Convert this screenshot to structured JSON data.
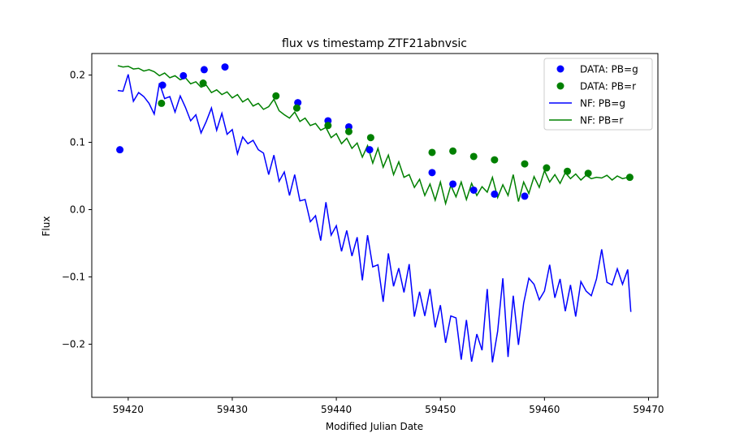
{
  "chart_data": {
    "type": "line",
    "title": "flux vs timestamp ZTF21abnvsic",
    "xlabel": "Modified Julian Date",
    "ylabel": "Flux",
    "xlim": [
      59416.5,
      59470.9
    ],
    "ylim": [
      -0.279,
      0.232
    ],
    "xticks": [
      59420,
      59430,
      59440,
      59450,
      59460,
      59470
    ],
    "yticks": [
      -0.2,
      -0.1,
      0.0,
      0.1,
      0.2
    ],
    "xtick_labels": [
      "59420",
      "59430",
      "59440",
      "59450",
      "59460",
      "59470"
    ],
    "ytick_labels": [
      "−0.2",
      "−0.1",
      "0.0",
      "0.1",
      "0.2"
    ],
    "grid": false,
    "legend_position": "top-right",
    "series": [
      {
        "name": "DATA: PB=g",
        "kind": "scatter",
        "color": "#0000ff",
        "x": [
          59419.2,
          59423.3,
          59425.3,
          59427.3,
          59429.3,
          59436.3,
          59439.2,
          59441.2,
          59443.2,
          59449.2,
          59451.2,
          59453.2,
          59455.2,
          59458.1
        ],
        "y": [
          0.089,
          0.185,
          0.199,
          0.208,
          0.212,
          0.159,
          0.132,
          0.123,
          0.089,
          0.055,
          0.038,
          0.029,
          0.023,
          0.02
        ]
      },
      {
        "name": "DATA: PB=r",
        "kind": "scatter",
        "color": "#008000",
        "x": [
          59423.2,
          59427.2,
          59434.2,
          59436.2,
          59439.2,
          59441.2,
          59443.3,
          59449.2,
          59451.2,
          59453.2,
          59455.2,
          59458.1,
          59460.2,
          59462.2,
          59464.2,
          59468.2
        ],
        "y": [
          0.158,
          0.188,
          0.169,
          0.151,
          0.125,
          0.116,
          0.107,
          0.085,
          0.087,
          0.079,
          0.074,
          0.068,
          0.062,
          0.057,
          0.054,
          0.048
        ]
      },
      {
        "name": "NF: PB=g",
        "kind": "line",
        "color": "#0000ff",
        "x": [
          59419.0,
          59419.5,
          59420.0,
          59420.5,
          59421.0,
          59421.5,
          59422.0,
          59422.5,
          59423.0,
          59423.5,
          59424.0,
          59424.5,
          59425.0,
          59425.5,
          59426.0,
          59426.5,
          59427.0,
          59427.5,
          59428.0,
          59428.5,
          59429.0,
          59429.5,
          59430.0,
          59430.5,
          59431.0,
          59431.5,
          59432.0,
          59432.5,
          59433.0,
          59433.5,
          59434.0,
          59434.5,
          59435.0,
          59435.5,
          59436.0,
          59436.5,
          59437.0,
          59437.5,
          59438.0,
          59438.5,
          59439.0,
          59439.5,
          59440.0,
          59440.5,
          59441.0,
          59441.5,
          59442.0,
          59442.5,
          59443.0,
          59443.5,
          59444.0,
          59444.5,
          59445.0,
          59445.5,
          59446.0,
          59446.5,
          59447.0,
          59447.5,
          59448.0,
          59448.5,
          59449.0,
          59449.5,
          59450.0,
          59450.5,
          59451.0,
          59451.5,
          59452.0,
          59452.5,
          59453.0,
          59453.5,
          59454.0,
          59454.5,
          59455.0,
          59455.5,
          59456.0,
          59456.5,
          59457.0,
          59457.5,
          59458.0,
          59458.5,
          59459.0,
          59459.5,
          59460.0,
          59460.5,
          59461.0,
          59461.5,
          59462.0,
          59462.5,
          59463.0,
          59463.5,
          59464.0,
          59464.5,
          59465.0,
          59465.5,
          59466.0,
          59466.5,
          59467.0,
          59467.5,
          59468.0,
          59468.3
        ],
        "y": [
          0.177,
          0.176,
          0.201,
          0.161,
          0.174,
          0.168,
          0.158,
          0.142,
          0.188,
          0.165,
          0.168,
          0.145,
          0.169,
          0.152,
          0.132,
          0.141,
          0.114,
          0.131,
          0.151,
          0.118,
          0.143,
          0.112,
          0.119,
          0.083,
          0.108,
          0.098,
          0.103,
          0.089,
          0.084,
          0.052,
          0.081,
          0.042,
          0.056,
          0.021,
          0.052,
          0.013,
          0.015,
          -0.018,
          -0.009,
          -0.046,
          0.011,
          -0.038,
          -0.024,
          -0.062,
          -0.031,
          -0.069,
          -0.041,
          -0.105,
          -0.038,
          -0.085,
          -0.082,
          -0.137,
          -0.065,
          -0.114,
          -0.087,
          -0.123,
          -0.081,
          -0.159,
          -0.122,
          -0.158,
          -0.118,
          -0.175,
          -0.142,
          -0.198,
          -0.158,
          -0.161,
          -0.223,
          -0.164,
          -0.226,
          -0.185,
          -0.209,
          -0.118,
          -0.227,
          -0.181,
          -0.102,
          -0.219,
          -0.128,
          -0.201,
          -0.139,
          -0.102,
          -0.111,
          -0.134,
          -0.121,
          -0.082,
          -0.131,
          -0.103,
          -0.151,
          -0.112,
          -0.159,
          -0.107,
          -0.121,
          -0.128,
          -0.103,
          -0.059,
          -0.108,
          -0.112,
          -0.088,
          -0.111,
          -0.089,
          -0.152
        ]
      },
      {
        "name": "NF: PB=r",
        "kind": "line",
        "color": "#008000",
        "x": [
          59419.0,
          59419.5,
          59420.0,
          59420.5,
          59421.0,
          59421.5,
          59422.0,
          59422.5,
          59423.0,
          59423.5,
          59424.0,
          59424.5,
          59425.0,
          59425.5,
          59426.0,
          59426.5,
          59427.0,
          59427.5,
          59428.0,
          59428.5,
          59429.0,
          59429.5,
          59430.0,
          59430.5,
          59431.0,
          59431.5,
          59432.0,
          59432.5,
          59433.0,
          59433.5,
          59434.0,
          59434.5,
          59435.0,
          59435.5,
          59436.0,
          59436.5,
          59437.0,
          59437.5,
          59438.0,
          59438.5,
          59439.0,
          59439.5,
          59440.0,
          59440.5,
          59441.0,
          59441.5,
          59442.0,
          59442.5,
          59443.0,
          59443.5,
          59444.0,
          59444.5,
          59445.0,
          59445.5,
          59446.0,
          59446.5,
          59447.0,
          59447.5,
          59448.0,
          59448.5,
          59449.0,
          59449.5,
          59450.0,
          59450.5,
          59451.0,
          59451.5,
          59452.0,
          59452.5,
          59453.0,
          59453.5,
          59454.0,
          59454.5,
          59455.0,
          59455.5,
          59456.0,
          59456.5,
          59457.0,
          59457.5,
          59458.0,
          59458.5,
          59459.0,
          59459.5,
          59460.0,
          59460.5,
          59461.0,
          59461.5,
          59462.0,
          59462.5,
          59463.0,
          59463.5,
          59464.0,
          59464.5,
          59465.0,
          59465.5,
          59466.0,
          59466.5,
          59467.0,
          59467.5,
          59468.0
        ],
        "y": [
          0.214,
          0.212,
          0.213,
          0.209,
          0.21,
          0.206,
          0.208,
          0.205,
          0.199,
          0.203,
          0.196,
          0.199,
          0.193,
          0.196,
          0.187,
          0.19,
          0.182,
          0.185,
          0.174,
          0.178,
          0.171,
          0.175,
          0.166,
          0.171,
          0.16,
          0.165,
          0.154,
          0.158,
          0.149,
          0.153,
          0.164,
          0.147,
          0.141,
          0.136,
          0.145,
          0.131,
          0.136,
          0.125,
          0.128,
          0.118,
          0.122,
          0.107,
          0.113,
          0.098,
          0.106,
          0.091,
          0.099,
          0.078,
          0.095,
          0.069,
          0.091,
          0.063,
          0.081,
          0.052,
          0.071,
          0.048,
          0.052,
          0.033,
          0.045,
          0.021,
          0.038,
          0.014,
          0.041,
          0.009,
          0.036,
          0.019,
          0.041,
          0.015,
          0.039,
          0.021,
          0.034,
          0.026,
          0.048,
          0.018,
          0.037,
          0.021,
          0.052,
          0.012,
          0.041,
          0.024,
          0.049,
          0.033,
          0.058,
          0.041,
          0.052,
          0.039,
          0.055,
          0.046,
          0.053,
          0.044,
          0.051,
          0.046,
          0.048,
          0.047,
          0.051,
          0.044,
          0.05,
          0.046,
          0.048
        ]
      }
    ]
  }
}
